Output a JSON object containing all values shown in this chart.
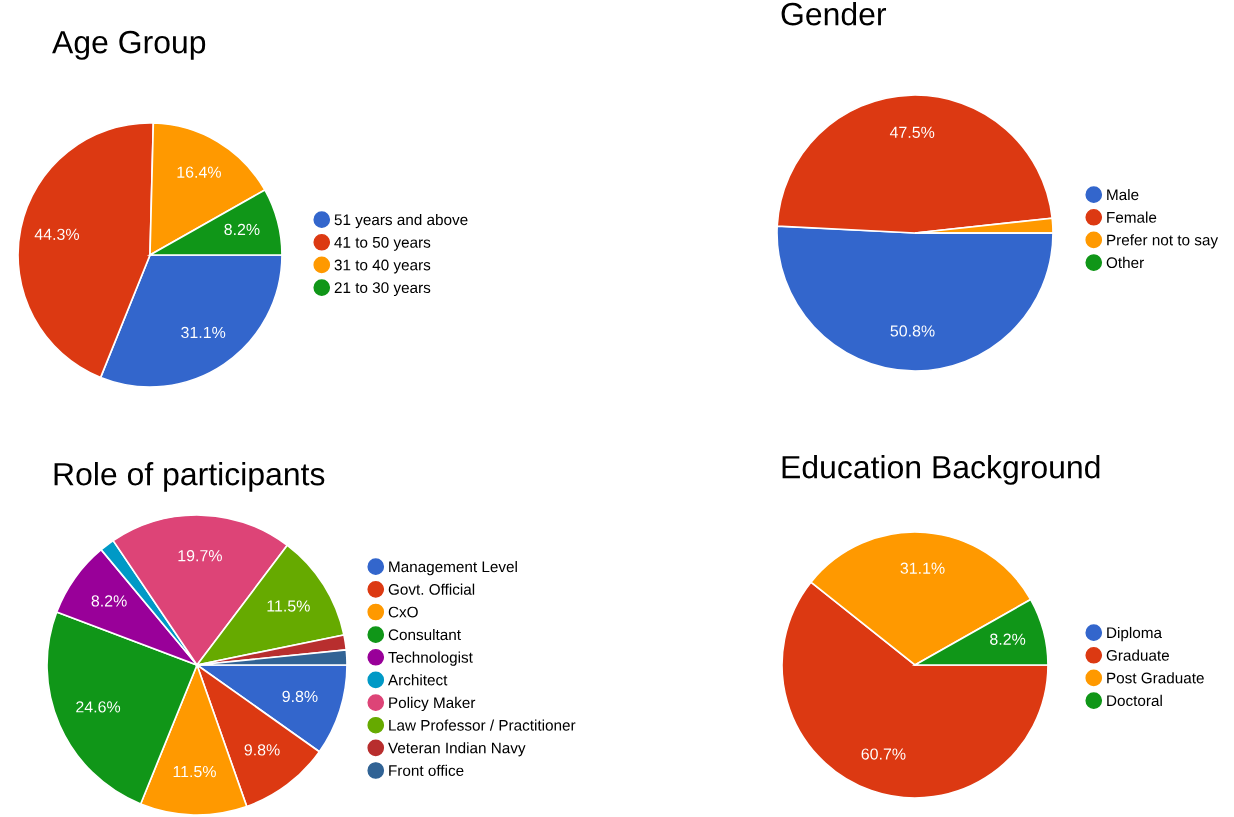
{
  "chart_data": [
    {
      "type": "pie",
      "title": "Age Group",
      "categories": [
        "51 years and above",
        "41 to 50 years",
        "31 to 40 years",
        "21 to 30 years"
      ],
      "values": [
        31.1,
        44.3,
        16.4,
        8.2
      ],
      "colors": [
        "#3366cc",
        "#dc3912",
        "#ff9900",
        "#109618"
      ],
      "value_labels": [
        "31.1%",
        "44.3%",
        "16.4%",
        "8.2%"
      ],
      "legend": "right"
    },
    {
      "type": "pie",
      "title": "Gender",
      "categories": [
        "Male",
        "Female",
        "Prefer not to say",
        "Other"
      ],
      "values": [
        50.8,
        47.5,
        1.7,
        0
      ],
      "colors": [
        "#3366cc",
        "#dc3912",
        "#ff9900",
        "#109618"
      ],
      "value_labels": [
        "50.8%",
        "47.5%",
        null,
        null
      ],
      "legend": "right"
    },
    {
      "type": "pie",
      "title": "Role of participants",
      "categories": [
        "Management Level",
        "Govt. Official",
        "CxO",
        "Consultant",
        "Technologist",
        "Architect",
        "Policy Maker",
        "Law Professor / Practitioner",
        "Veteran Indian Navy",
        "Front office"
      ],
      "values": [
        9.8,
        9.8,
        11.5,
        24.6,
        8.2,
        1.6,
        19.7,
        11.5,
        1.6,
        1.6
      ],
      "colors": [
        "#3366cc",
        "#dc3912",
        "#ff9900",
        "#109618",
        "#990099",
        "#0099c6",
        "#dd4477",
        "#66aa00",
        "#b82e2e",
        "#316395"
      ],
      "value_labels": [
        "9.8%",
        "9.8%",
        "11.5%",
        "24.6%",
        "8.2%",
        null,
        "19.7%",
        "11.5%",
        null,
        null
      ],
      "legend": "right"
    },
    {
      "type": "pie",
      "title": "Education Background",
      "categories": [
        "Diploma",
        "Graduate",
        "Post Graduate",
        "Doctoral"
      ],
      "values": [
        0,
        60.7,
        31.1,
        8.2
      ],
      "colors": [
        "#3366cc",
        "#dc3912",
        "#ff9900",
        "#109618"
      ],
      "value_labels": [
        null,
        "60.7%",
        "31.1%",
        "8.2%"
      ],
      "legend": "right"
    }
  ]
}
